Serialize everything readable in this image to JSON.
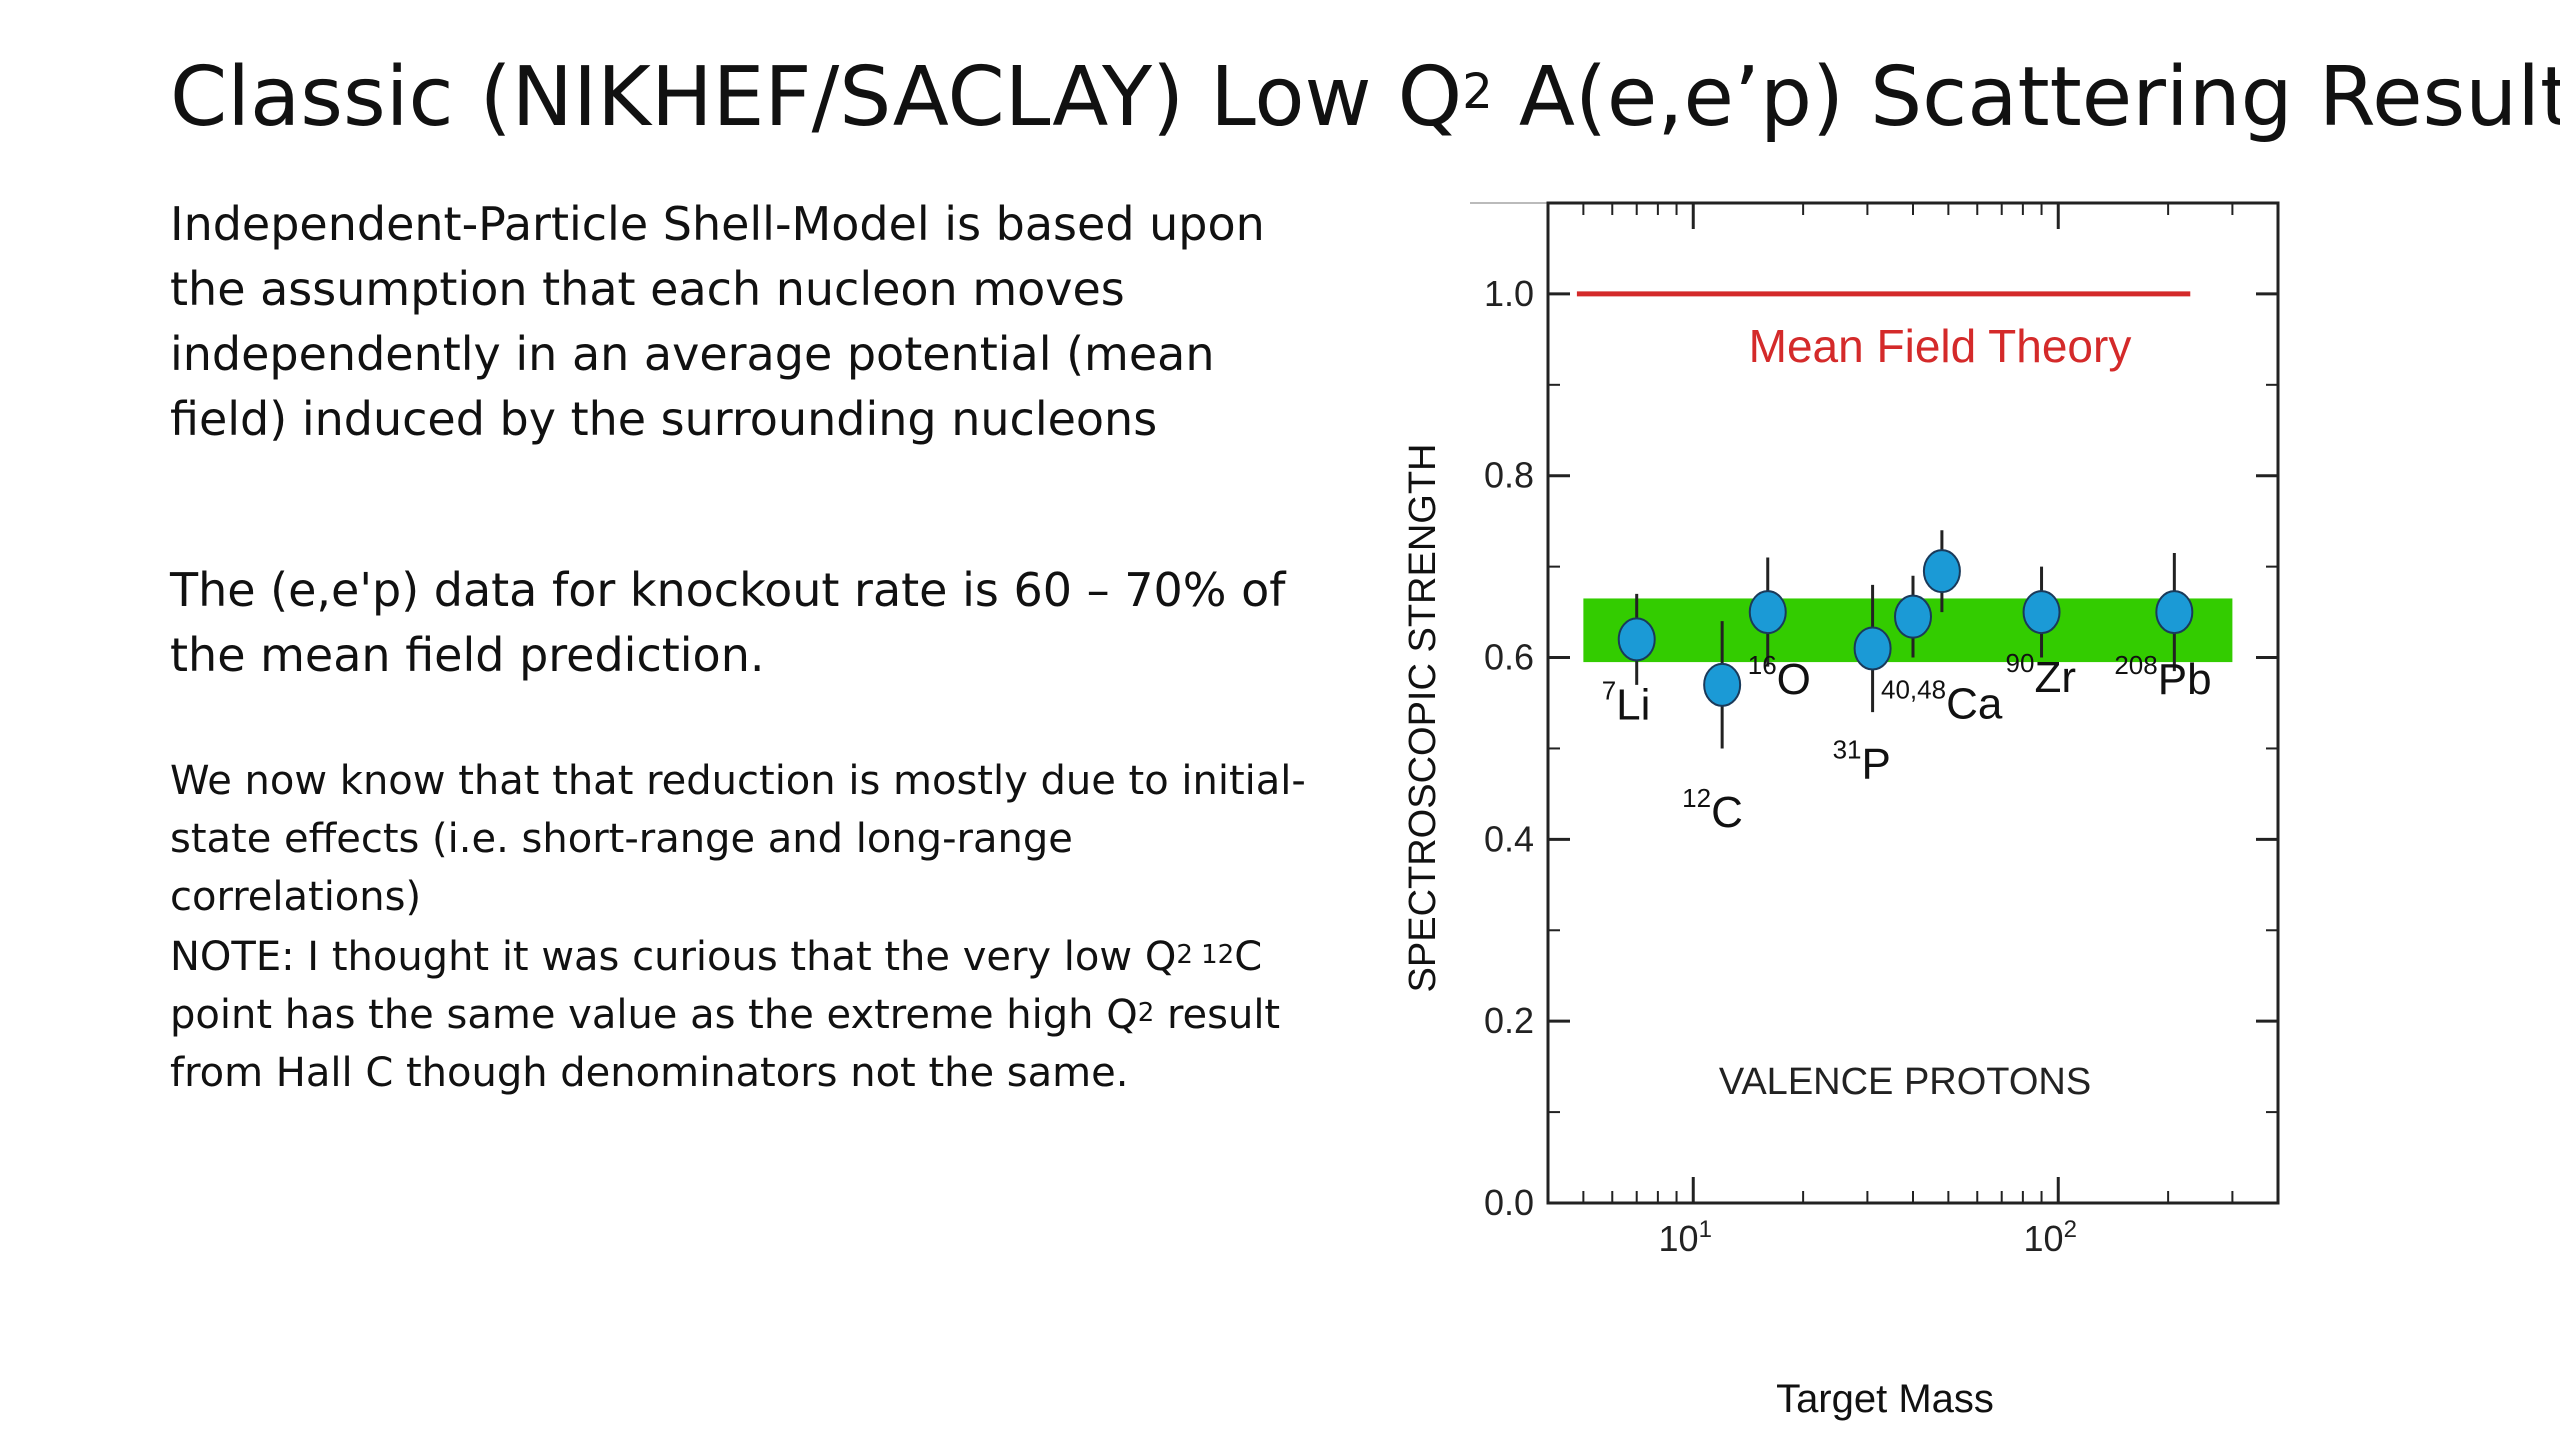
{
  "slide": {
    "title_main": "Classic (NIKHEF/SACLAY) Low Q",
    "title_sup": "2",
    "title_rest": " A(e,e’p) Scattering Results",
    "para1": "Independent-Particle Shell-Model is based upon the assumption that each nucleon moves independently in an average potential (mean field) induced by the surrounding nucleons",
    "para2": "The (e,e'p) data for knockout rate is 60 – 70% of the mean field prediction.",
    "para3": "We now know that that reduction is mostly due to initial-state effects (i.e. short-range and long-range correlations)",
    "para4_a": "NOTE: I thought it was curious that the very low Q",
    "para4_sup1": "2",
    "para4_sup2": " 12",
    "para4_b": "C point has the same value as the extreme high Q",
    "para4_sup3": "2",
    "para4_c": " result from Hall C though denominators not the same."
  },
  "chart_data": {
    "type": "scatter",
    "title": "",
    "xlabel": "Target Mass",
    "ylabel": "SPECTROSCOPIC STRENGTH",
    "xscale": "log",
    "xlim": [
      4,
      400
    ],
    "ylim": [
      0.0,
      1.1
    ],
    "yticks": [
      {
        "value": 0.0,
        "label": "0.0"
      },
      {
        "value": 0.2,
        "label": "0.2"
      },
      {
        "value": 0.4,
        "label": "0.4"
      },
      {
        "value": 0.6,
        "label": "0.6"
      },
      {
        "value": 0.8,
        "label": "0.8"
      },
      {
        "value": 1.0,
        "label": "1.0"
      }
    ],
    "xticks": [
      {
        "value": 10,
        "base": "10",
        "exp": "1"
      },
      {
        "value": 100,
        "base": "10",
        "exp": "2"
      }
    ],
    "mean_field": {
      "label": "Mean Field Theory",
      "y": 1.0,
      "x_range": [
        4.8,
        230
      ],
      "color": "#d42a2a"
    },
    "band": {
      "y_range": [
        0.595,
        0.665
      ],
      "x_range": [
        5,
        300
      ],
      "color": "#33cc00"
    },
    "annotation": "VALENCE PROTONS",
    "marker_color": "#1b9ad6",
    "points": [
      {
        "sup": "7",
        "label": "Li",
        "x": 7,
        "y": 0.62,
        "err": 0.05
      },
      {
        "sup": "12",
        "label": "C",
        "x": 12,
        "y": 0.57,
        "err": 0.07
      },
      {
        "sup": "16",
        "label": "O",
        "x": 16,
        "y": 0.65,
        "err": 0.06
      },
      {
        "sup": "31",
        "label": "P",
        "x": 31,
        "y": 0.61,
        "err": 0.07
      },
      {
        "sup": "40,48",
        "label": "Ca",
        "x": 40,
        "y": 0.645,
        "err": 0.045
      },
      {
        "sup": "",
        "label": "",
        "x": 48,
        "y": 0.695,
        "err": 0.045
      },
      {
        "sup": "90",
        "label": "Zr",
        "x": 90,
        "y": 0.65,
        "err": 0.05
      },
      {
        "sup": "208",
        "label": "Pb",
        "x": 208,
        "y": 0.65,
        "err": 0.065
      }
    ]
  }
}
